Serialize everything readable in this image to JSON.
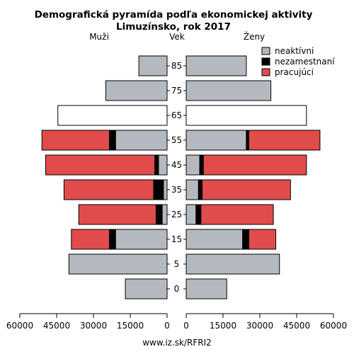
{
  "chart_data": {
    "type": "bar",
    "title_line1": "Demografická pyramída podľa ekonomickej aktivity",
    "title_line2": "Limuzínsko, rok 2017",
    "left_label": "Muži",
    "center_label": "Vek",
    "right_label": "Ženy",
    "source": "www.iz.sk/RFRI2",
    "categories": [
      "0",
      "5",
      "15",
      "25",
      "35",
      "45",
      "55",
      "65",
      "75",
      "85"
    ],
    "x_ticks_left": [
      "60000",
      "45000",
      "30000",
      "15000",
      "0"
    ],
    "x_ticks_right": [
      "0",
      "15000",
      "30000",
      "45000",
      "60000"
    ],
    "xlim": [
      0,
      60000
    ],
    "legend": [
      {
        "name": "neaktívni",
        "color": "#b4b9c0"
      },
      {
        "name": "nezamestnaní",
        "color": "#000000"
      },
      {
        "name": "pracujúci",
        "color": "#e04b4b"
      }
    ],
    "colors": {
      "total_only": "#ffffff",
      "stroke": "#000000"
    },
    "men": {
      "neaktivni": [
        17000,
        40000,
        21000,
        2000,
        1500,
        3500,
        21000,
        0,
        25000,
        11500
      ],
      "nezamestnani": [
        0,
        0,
        2500,
        2500,
        4000,
        1500,
        2500,
        0,
        0,
        0
      ],
      "pracujuci": [
        0,
        0,
        15500,
        31500,
        36500,
        44500,
        27500,
        0,
        0,
        0
      ],
      "total_only": [
        0,
        0,
        0,
        0,
        0,
        0,
        0,
        44500,
        0,
        0
      ]
    },
    "women": {
      "neaktivni": [
        16500,
        38000,
        23000,
        4000,
        5000,
        5500,
        24500,
        0,
        34500,
        24500
      ],
      "nezamestnani": [
        0,
        0,
        2500,
        2000,
        1500,
        1500,
        1000,
        0,
        0,
        0
      ],
      "pracujuci": [
        0,
        0,
        11000,
        29500,
        36000,
        42000,
        29000,
        0,
        0,
        0
      ],
      "total_only": [
        0,
        0,
        0,
        0,
        0,
        0,
        0,
        49000,
        0,
        0
      ]
    }
  }
}
